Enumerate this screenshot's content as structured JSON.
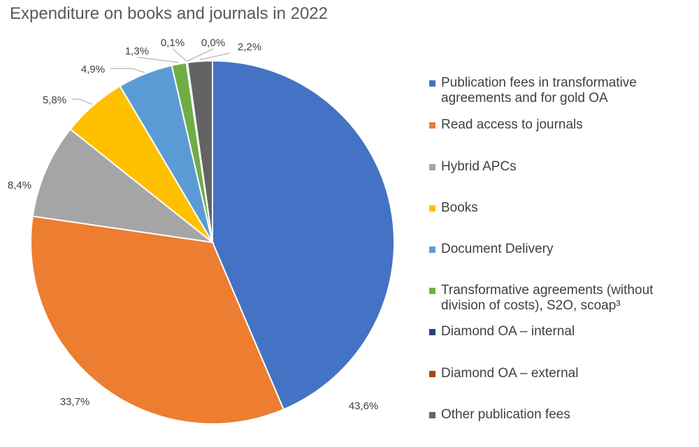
{
  "chart_data": {
    "type": "pie",
    "title": "Expenditure on books and journals in 2022",
    "slices": [
      {
        "label": "Publication fees in transformative agreements and for gold OA",
        "value": 43.6,
        "value_label": "43,6%",
        "color": "#4472C4"
      },
      {
        "label": "Read access to journals",
        "value": 33.7,
        "value_label": "33,7%",
        "color": "#ED7D31"
      },
      {
        "label": "Hybrid APCs",
        "value": 8.4,
        "value_label": "8,4%",
        "color": "#A5A5A5"
      },
      {
        "label": "Books",
        "value": 5.8,
        "value_label": "5,8%",
        "color": "#FFC000"
      },
      {
        "label": "Document Delivery",
        "value": 4.9,
        "value_label": "4,9%",
        "color": "#5B9BD5"
      },
      {
        "label": "Transformative agreements (without division of costs), S2O, scoap³",
        "value": 1.3,
        "value_label": "1,3%",
        "color": "#70AD47"
      },
      {
        "label": "Diamond OA – internal",
        "value": 0.1,
        "value_label": "0,1%",
        "color": "#264478"
      },
      {
        "label": "Diamond OA – external",
        "value": 0.0,
        "value_label": "0,0%",
        "color": "#9E480E"
      },
      {
        "label": "Other publication fees",
        "value": 2.2,
        "value_label": "2,2%",
        "color": "#636363"
      }
    ],
    "legend_position": "right"
  }
}
